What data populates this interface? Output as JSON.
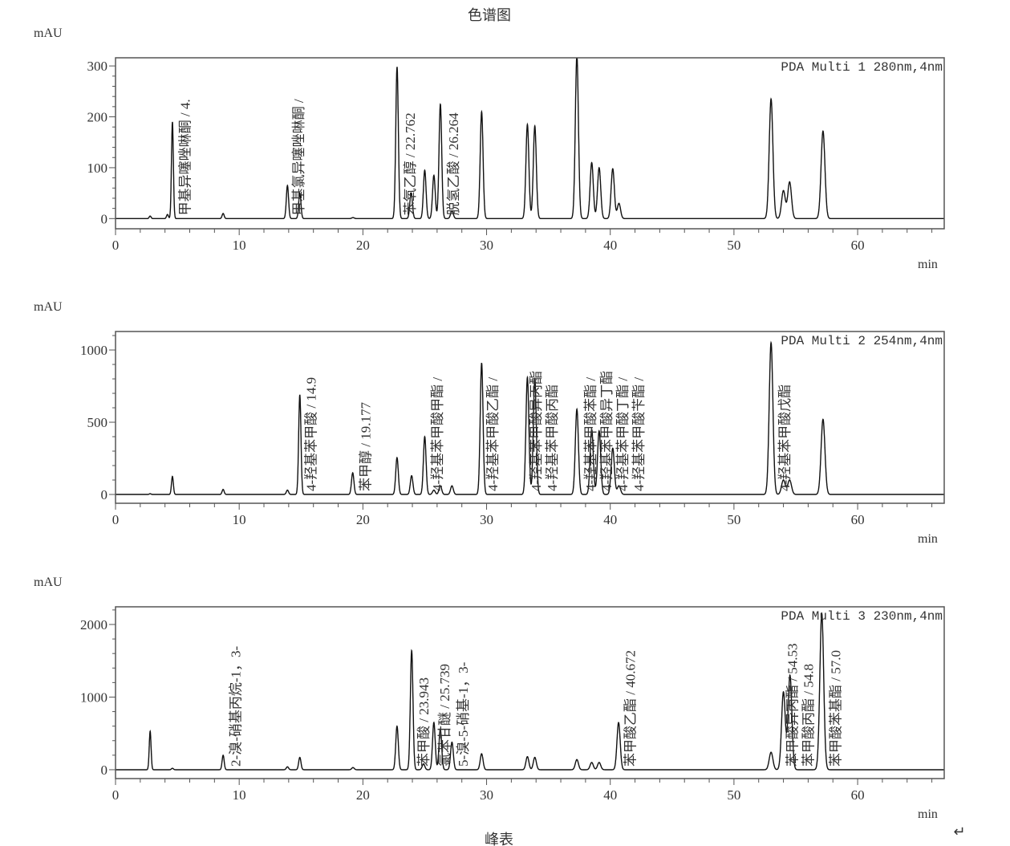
{
  "page": {
    "title": "色谱图",
    "footer_text": "峰表",
    "return_mark": "↵"
  },
  "chart_data": [
    {
      "type": "line",
      "channel": "PDA Multi 1 280nm,4nm",
      "ylabel": "mAU",
      "xlabel": "min",
      "xlim": [
        0,
        67
      ],
      "ylim": [
        -20,
        316
      ],
      "xticks": [
        0,
        10,
        20,
        30,
        40,
        50,
        60
      ],
      "yticks": [
        0,
        100,
        200,
        300
      ],
      "peaks": [
        [
          2.8,
          5
        ],
        [
          4.2,
          8
        ],
        [
          4.6,
          190
        ],
        [
          8.7,
          10
        ],
        [
          13.9,
          65
        ],
        [
          14.9,
          50
        ],
        [
          19.2,
          2
        ],
        [
          22.762,
          298
        ],
        [
          23.9,
          50
        ],
        [
          25.0,
          95
        ],
        [
          25.74,
          85
        ],
        [
          26.264,
          225
        ],
        [
          27.2,
          15
        ],
        [
          29.6,
          210
        ],
        [
          33.3,
          185
        ],
        [
          33.9,
          182
        ],
        [
          37.3,
          320
        ],
        [
          38.5,
          110
        ],
        [
          39.1,
          100
        ],
        [
          40.2,
          98
        ],
        [
          40.7,
          30
        ],
        [
          53.0,
          235
        ],
        [
          54.0,
          55
        ],
        [
          54.5,
          72
        ],
        [
          57.2,
          172
        ]
      ],
      "annotations": [
        {
          "text": "甲基异噻唑啉酮 / 4.",
          "rt": 5.6
        },
        {
          "text": "甲基氯异噻唑啉酮 /",
          "rt": 14.8
        },
        {
          "text": "苯氧乙醇 / 22.762",
          "rt": 23.8
        },
        {
          "text": "脱氢乙酸 / 26.264",
          "rt": 27.3
        }
      ]
    },
    {
      "type": "line",
      "channel": "PDA Multi 2 254nm,4nm",
      "ylabel": "mAU",
      "xlabel": "min",
      "xlim": [
        0,
        67
      ],
      "ylim": [
        -61,
        1128
      ],
      "xticks": [
        0,
        10,
        20,
        30,
        40,
        50,
        60
      ],
      "yticks": [
        0,
        500,
        1000
      ],
      "peaks": [
        [
          2.8,
          5
        ],
        [
          4.6,
          125
        ],
        [
          8.7,
          35
        ],
        [
          13.9,
          30
        ],
        [
          14.9,
          690
        ],
        [
          19.177,
          150
        ],
        [
          22.76,
          255
        ],
        [
          23.94,
          130
        ],
        [
          25.0,
          400
        ],
        [
          25.74,
          30
        ],
        [
          26.26,
          60
        ],
        [
          27.2,
          60
        ],
        [
          29.6,
          910
        ],
        [
          33.3,
          810
        ],
        [
          33.9,
          800
        ],
        [
          37.3,
          590
        ],
        [
          38.5,
          450
        ],
        [
          39.1,
          440
        ],
        [
          40.2,
          320
        ],
        [
          40.7,
          60
        ],
        [
          53.0,
          1050
        ],
        [
          54.0,
          100
        ],
        [
          54.5,
          100
        ],
        [
          57.2,
          520
        ]
      ],
      "annotations": [
        {
          "text": "4-羟基苯甲酸 / 14.9",
          "rt": 15.8
        },
        {
          "text": "苯甲醇 / 19.177",
          "rt": 20.2
        },
        {
          "text": "4-羟基苯甲酸甲酯 /",
          "rt": 26.0
        },
        {
          "text": "4-羟基苯甲酸乙酯 /",
          "rt": 30.5
        },
        {
          "text": "4-羟基苯甲酸异丙酯",
          "rt": 34.0
        },
        {
          "text": "4-羟基苯甲酸丙酯",
          "rt": 34.7
        },
        {
          "text": "4-羟基苯甲酸苯酯 /",
          "rt": 38.4
        },
        {
          "text": "4-羟基苯甲酸异丁酯",
          "rt": 39.6
        },
        {
          "text": "4-羟基苯甲酸丁酯 /",
          "rt": 40.4
        },
        {
          "text": "4-羟基苯甲酸苄酯 /",
          "rt": 41.4
        },
        {
          "text": "4-羟基苯甲酸戊酯",
          "rt": 54.1
        }
      ]
    },
    {
      "type": "line",
      "channel": "PDA Multi 3 230nm,4nm",
      "ylabel": "mAU",
      "xlabel": "min",
      "xlim": [
        0,
        67
      ],
      "ylim": [
        -122,
        2243
      ],
      "xticks": [
        0,
        10,
        20,
        30,
        40,
        50,
        60
      ],
      "yticks": [
        0,
        1000,
        2000
      ],
      "peaks": [
        [
          2.8,
          530
        ],
        [
          4.6,
          20
        ],
        [
          8.7,
          200
        ],
        [
          13.9,
          40
        ],
        [
          14.9,
          170
        ],
        [
          19.2,
          30
        ],
        [
          22.76,
          600
        ],
        [
          23.943,
          1640
        ],
        [
          24.9,
          80
        ],
        [
          25.739,
          650
        ],
        [
          26.26,
          560
        ],
        [
          27.2,
          380
        ],
        [
          29.6,
          220
        ],
        [
          33.3,
          180
        ],
        [
          33.9,
          170
        ],
        [
          37.3,
          140
        ],
        [
          38.5,
          100
        ],
        [
          39.1,
          100
        ],
        [
          40.672,
          650
        ],
        [
          53.0,
          240
        ],
        [
          54.0,
          1070
        ],
        [
          54.53,
          1300
        ],
        [
          57.1,
          2150
        ]
      ],
      "annotations": [
        {
          "text": "2-溴-硝基丙烷-1，3-",
          "rt": 9.7
        },
        {
          "text": "苯甲酸 / 23.943",
          "rt": 24.9
        },
        {
          "text": "氯苯甘醚 / 25.739",
          "rt": 26.6
        },
        {
          "text": "5-溴-5-硝基-1，3-",
          "rt": 28.1
        },
        {
          "text": "苯甲酸乙酯 / 40.672",
          "rt": 41.6
        },
        {
          "text": "苯甲酸异丙酯 / 54.53",
          "rt": 54.7
        },
        {
          "text": "苯甲酸丙酯 / 54.8",
          "rt": 55.4
        },
        {
          "text": "苯甲酸苯基酯 / 57.0",
          "rt": 58.2
        }
      ]
    }
  ]
}
